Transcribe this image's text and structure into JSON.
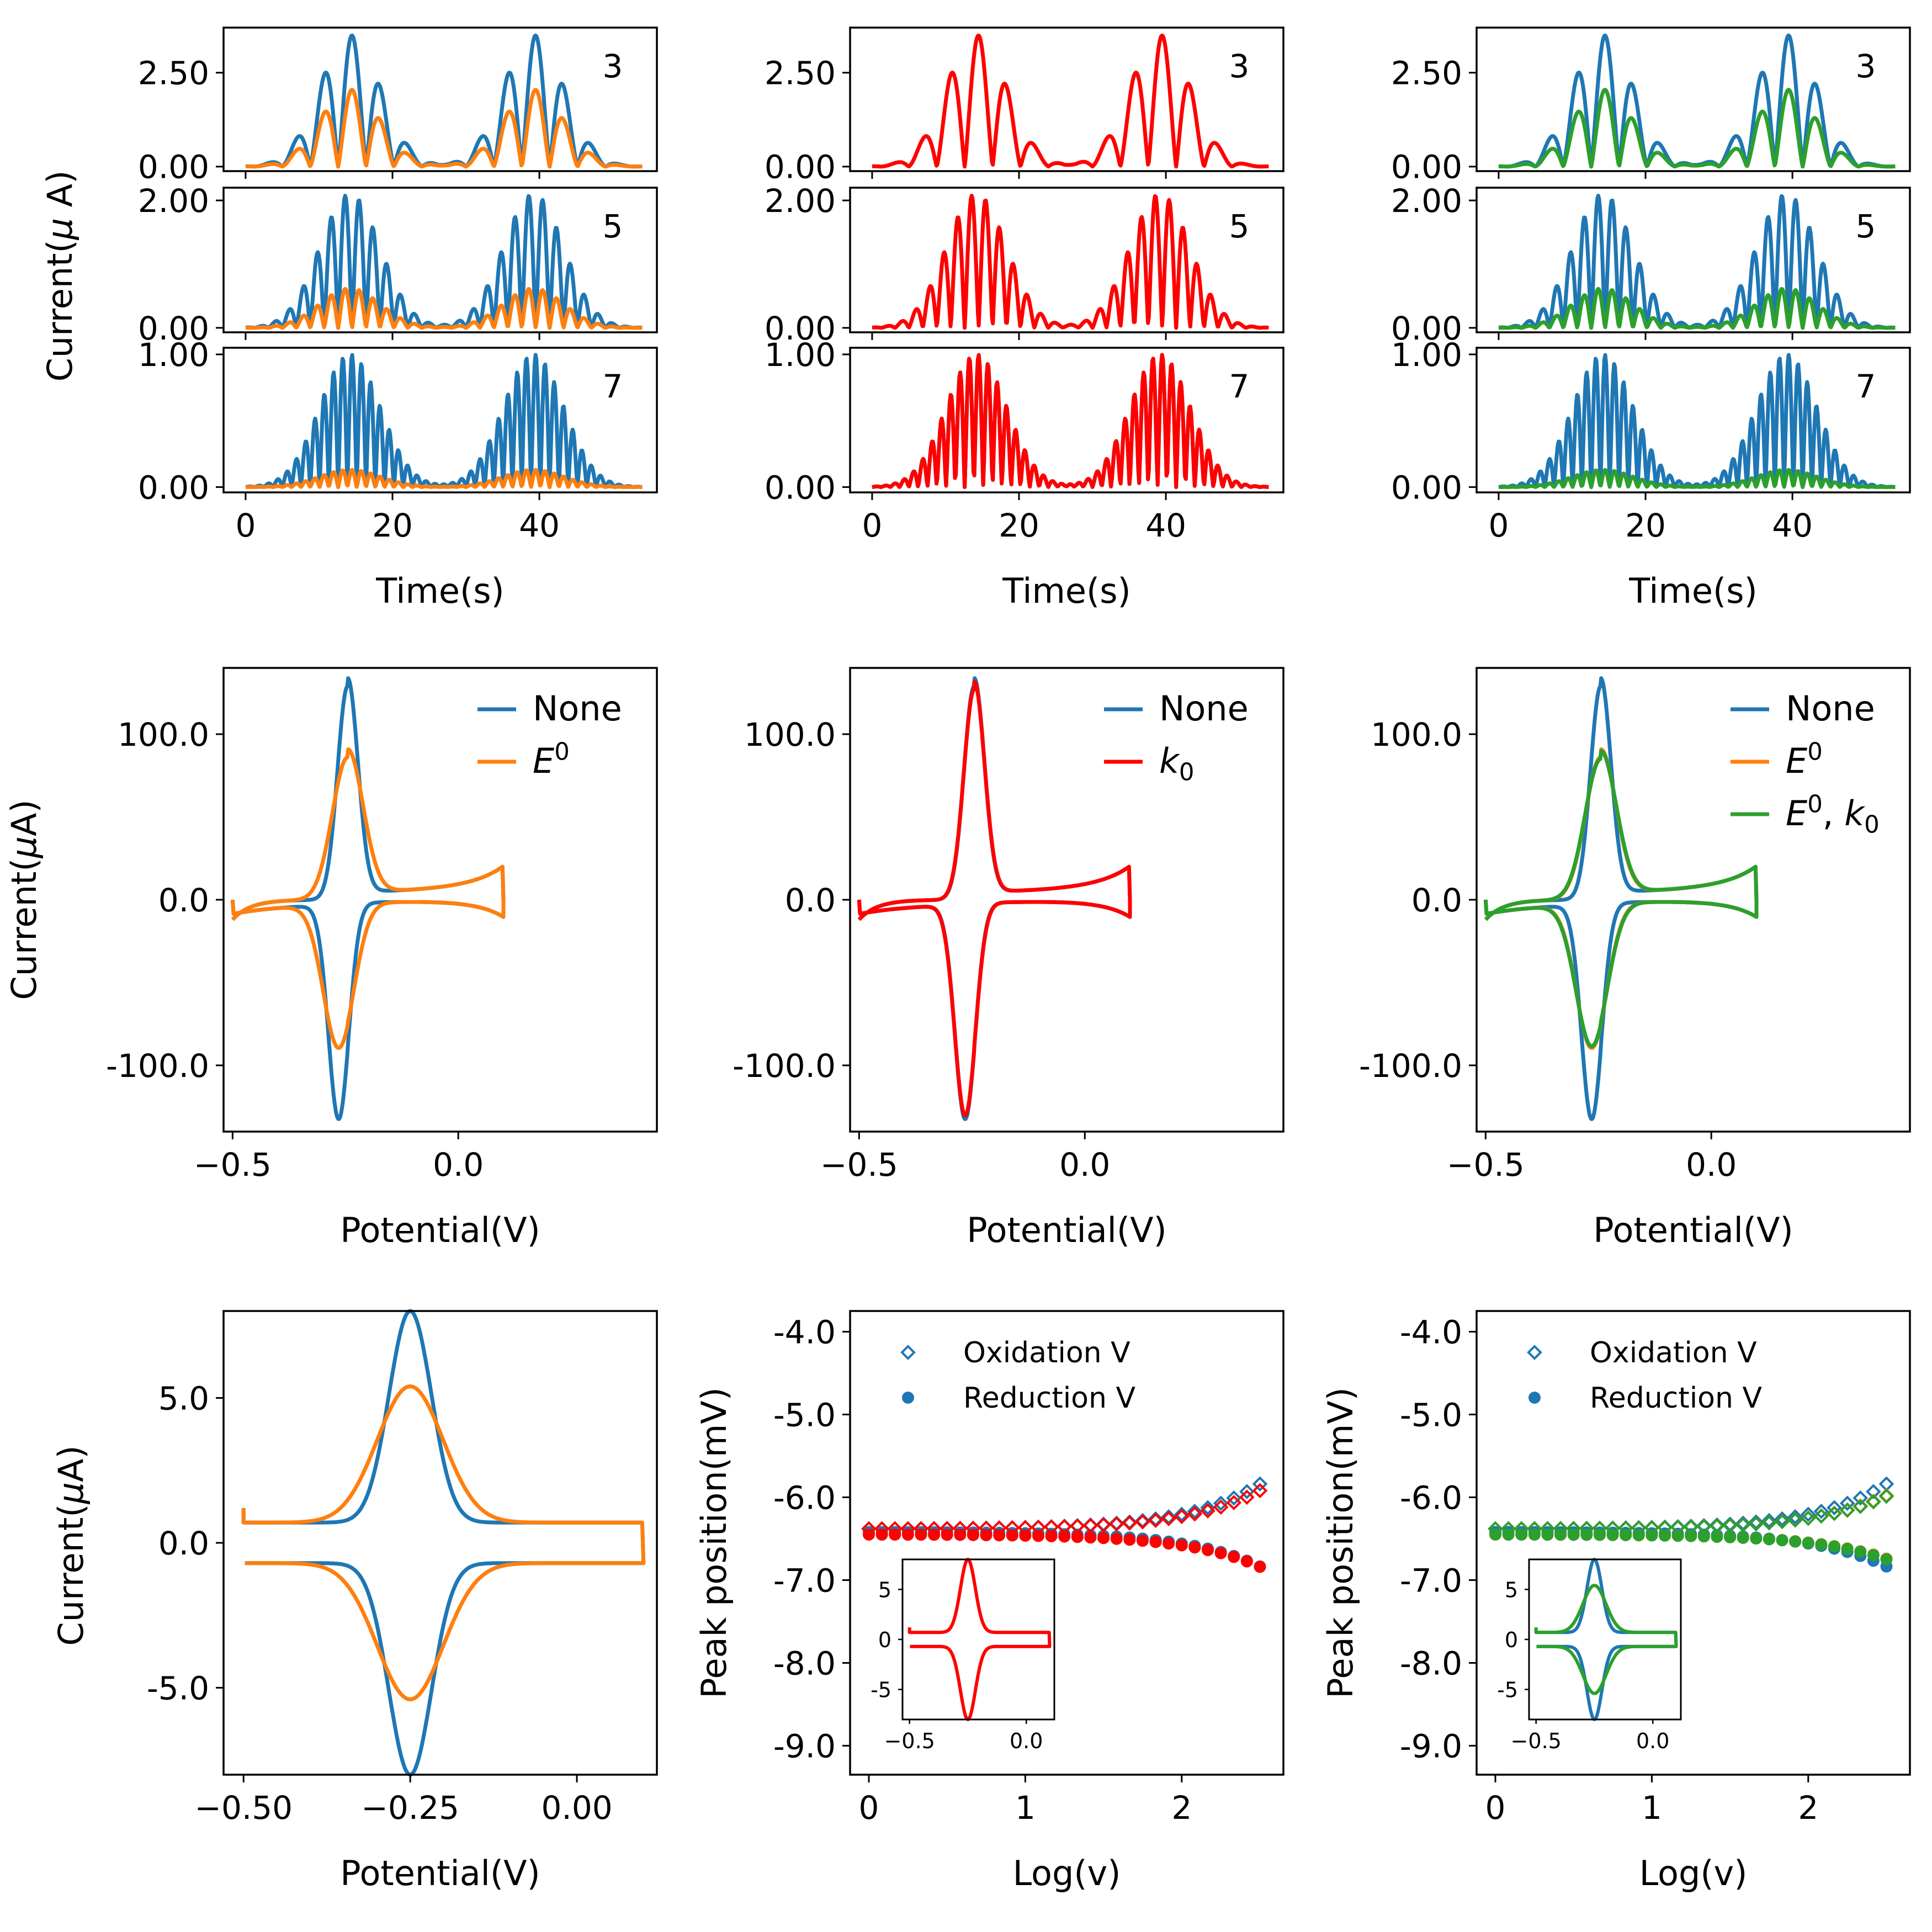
{
  "figure": {
    "colors": {
      "blue": "#1f77b4",
      "orange": "#ff7f0e",
      "red": "#ff0000",
      "green": "#2ca02c",
      "axis": "#000000"
    },
    "row1_ylabel": "Current($\\mu$ A)",
    "time_xlabel": "Time(s)",
    "potential_xlabel": "Potential(V)",
    "current_ylabel": "Current($\\mu$A)",
    "peak_ylabel": "Peak position(mV)",
    "log_xlabel": "Log(v)"
  },
  "chart_data": [
    {
      "id": "r1c1-h3",
      "type": "line",
      "harmonic": "3",
      "xlim": [
        -3,
        56
      ],
      "ylim": [
        -0.12,
        3.7
      ],
      "yticks": [
        "0.00",
        "2.50"
      ],
      "series": [
        {
          "color": "blue",
          "amp": 3.5
        },
        {
          "color": "orange",
          "amp": 2.05
        }
      ]
    },
    {
      "id": "r1c1-h5",
      "type": "line",
      "harmonic": "5",
      "xlim": [
        -3,
        56
      ],
      "ylim": [
        -0.07,
        2.2
      ],
      "yticks": [
        "0.00",
        "2.00"
      ],
      "series": [
        {
          "color": "blue",
          "amp": 2.1
        },
        {
          "color": "orange",
          "amp": 0.62
        }
      ]
    },
    {
      "id": "r1c1-h7",
      "type": "line",
      "harmonic": "7",
      "xlim": [
        -3,
        56
      ],
      "ylim": [
        -0.04,
        1.05
      ],
      "yticks": [
        "0.00",
        "1.00"
      ],
      "xticks": [
        "0",
        "20",
        "40"
      ],
      "series": [
        {
          "color": "blue",
          "amp": 1.0
        },
        {
          "color": "orange",
          "amp": 0.13
        }
      ]
    },
    {
      "id": "r1c2-h3",
      "type": "line",
      "harmonic": "3",
      "xlim": [
        -3,
        56
      ],
      "ylim": [
        -0.12,
        3.7
      ],
      "yticks": [
        "0.00",
        "2.50"
      ],
      "series": [
        {
          "color": "red",
          "amp": 3.5
        }
      ]
    },
    {
      "id": "r1c2-h5",
      "type": "line",
      "harmonic": "5",
      "xlim": [
        -3,
        56
      ],
      "ylim": [
        -0.07,
        2.2
      ],
      "yticks": [
        "0.00",
        "2.00"
      ],
      "series": [
        {
          "color": "red",
          "amp": 2.1
        }
      ]
    },
    {
      "id": "r1c2-h7",
      "type": "line",
      "harmonic": "7",
      "xlim": [
        -3,
        56
      ],
      "ylim": [
        -0.04,
        1.05
      ],
      "yticks": [
        "0.00",
        "1.00"
      ],
      "xticks": [
        "0",
        "20",
        "40"
      ],
      "series": [
        {
          "color": "blue",
          "amp": 1.0
        },
        {
          "color": "red",
          "amp": 1.0
        }
      ]
    },
    {
      "id": "r1c3-h3",
      "type": "line",
      "harmonic": "3",
      "xlim": [
        -3,
        56
      ],
      "ylim": [
        -0.12,
        3.7
      ],
      "yticks": [
        "0.00",
        "2.50"
      ],
      "series": [
        {
          "color": "blue",
          "amp": 3.5
        },
        {
          "color": "green",
          "amp": 2.05
        }
      ]
    },
    {
      "id": "r1c3-h5",
      "type": "line",
      "harmonic": "5",
      "xlim": [
        -3,
        56
      ],
      "ylim": [
        -0.07,
        2.2
      ],
      "yticks": [
        "0.00",
        "2.00"
      ],
      "series": [
        {
          "color": "blue",
          "amp": 2.1
        },
        {
          "color": "green",
          "amp": 0.62
        }
      ]
    },
    {
      "id": "r1c3-h7",
      "type": "line",
      "harmonic": "7",
      "xlim": [
        -3,
        56
      ],
      "ylim": [
        -0.04,
        1.05
      ],
      "yticks": [
        "0.00",
        "1.00"
      ],
      "xticks": [
        "0",
        "20",
        "40"
      ],
      "series": [
        {
          "color": "blue",
          "amp": 1.0
        },
        {
          "color": "green",
          "amp": 0.13
        }
      ]
    },
    {
      "id": "r2c1",
      "type": "line",
      "xlim": [
        -0.52,
        0.44
      ],
      "ylim": [
        -140,
        140
      ],
      "xticks": [
        "−0.5",
        "0.0"
      ],
      "yticks": [
        "-100.0",
        "0.0",
        "100.0"
      ],
      "legend": [
        "None",
        "$E^0$"
      ],
      "legend_position": "top-right",
      "series": [
        {
          "name": "None",
          "color": "blue",
          "peak": 129,
          "width": 0.032
        },
        {
          "name": "$E^0$",
          "color": "orange",
          "peak": 86,
          "width": 0.048
        }
      ]
    },
    {
      "id": "r2c2",
      "type": "line",
      "xlim": [
        -0.52,
        0.44
      ],
      "ylim": [
        -140,
        140
      ],
      "xticks": [
        "−0.5",
        "0.0"
      ],
      "yticks": [
        "-100.0",
        "0.0",
        "100.0"
      ],
      "legend": [
        "None",
        "$k_0$"
      ],
      "legend_position": "top-right",
      "series": [
        {
          "name": "None",
          "color": "blue",
          "peak": 129,
          "width": 0.032
        },
        {
          "name": "$k_0$",
          "color": "red",
          "peak": 127,
          "width": 0.0325
        }
      ]
    },
    {
      "id": "r2c3",
      "type": "line",
      "xlim": [
        -0.52,
        0.44
      ],
      "ylim": [
        -140,
        140
      ],
      "xticks": [
        "−0.5",
        "0.0"
      ],
      "yticks": [
        "-100.0",
        "0.0",
        "100.0"
      ],
      "legend": [
        "None",
        "$E^0$",
        "$E^0, k_0$"
      ],
      "legend_position": "top-right",
      "series": [
        {
          "name": "None",
          "color": "blue",
          "peak": 129,
          "width": 0.032
        },
        {
          "name": "$E^0$",
          "color": "orange",
          "peak": 86,
          "width": 0.048
        },
        {
          "name": "$E^0, k_0$",
          "color": "green",
          "peak": 85,
          "width": 0.049
        }
      ]
    },
    {
      "id": "r3c1",
      "type": "line",
      "xlim": [
        -0.53,
        0.12
      ],
      "ylim": [
        -8,
        8
      ],
      "xticks": [
        "−0.50",
        "−0.25",
        "0.00"
      ],
      "yticks": [
        "-5.0",
        "0.0",
        "5.0"
      ],
      "series": [
        {
          "color": "blue",
          "peak": 7.3,
          "width": 0.045
        },
        {
          "color": "orange",
          "peak": 4.7,
          "width": 0.07
        }
      ]
    },
    {
      "id": "r3c2",
      "type": "scatter",
      "xlim": [
        -0.12,
        2.65
      ],
      "ylim": [
        -9.35,
        -3.75
      ],
      "xticks": [
        "0",
        "1",
        "2"
      ],
      "yticks": [
        "-9.0",
        "-8.0",
        "-7.0",
        "-6.0",
        "-5.0",
        "-4.0"
      ],
      "legend": [
        "Oxidation V",
        "Reduction V"
      ],
      "legend_position": "top-left",
      "series": [
        {
          "name": "Oxidation V",
          "color": "blue",
          "y0": -6.38,
          "c": 0.2,
          "k": 2.25
        },
        {
          "name": "Reduction V",
          "color": "blue",
          "y0": -6.42,
          "c": -0.16,
          "k": 2.18
        },
        {
          "color": "red",
          "y0": -6.38,
          "c": 0.17,
          "k": 2.25
        },
        {
          "color": "red",
          "y0": -6.45,
          "c": -0.15,
          "k": 2.18
        }
      ],
      "inset": {
        "xticks": [
          "−0.5",
          "0.0"
        ],
        "yticks": [
          "-5",
          "0",
          "5"
        ]
      }
    },
    {
      "id": "r3c3",
      "type": "scatter",
      "xlim": [
        -0.12,
        2.65
      ],
      "ylim": [
        -9.35,
        -3.75
      ],
      "xticks": [
        "0",
        "1",
        "2"
      ],
      "yticks": [
        "-9.0",
        "-8.0",
        "-7.0",
        "-6.0",
        "-5.0",
        "-4.0"
      ],
      "legend": [
        "Oxidation V",
        "Reduction V"
      ],
      "legend_position": "top-left",
      "series": [
        {
          "name": "Oxidation V",
          "color": "blue",
          "y0": -6.38,
          "c": 0.2,
          "k": 2.25
        },
        {
          "name": "Reduction V",
          "color": "blue",
          "y0": -6.42,
          "c": -0.16,
          "k": 2.18
        },
        {
          "color": "orange",
          "y0": -6.38,
          "c": 0.148,
          "k": 2.25
        },
        {
          "color": "orange",
          "y0": -6.45,
          "c": -0.112,
          "k": 2.18
        },
        {
          "color": "green",
          "y0": -6.38,
          "c": 0.145,
          "k": 2.25
        },
        {
          "color": "green",
          "y0": -6.45,
          "c": -0.115,
          "k": 2.18
        }
      ],
      "inset": {
        "xticks": [
          "−0.5",
          "0.0"
        ],
        "yticks": [
          "-5",
          "0",
          "5"
        ]
      }
    }
  ]
}
